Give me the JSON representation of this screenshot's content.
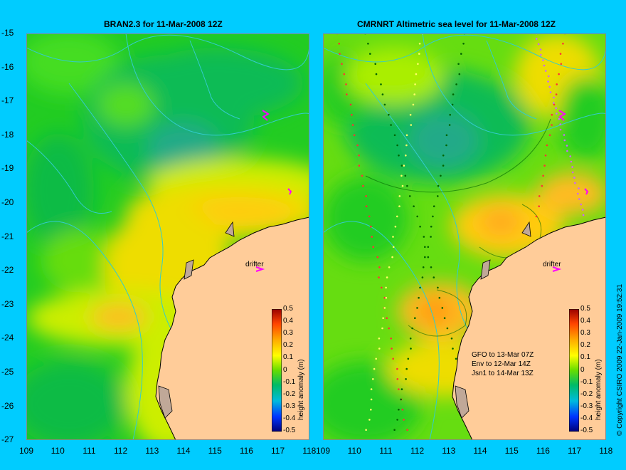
{
  "panels": {
    "left": {
      "title": "BRAN2.3 for 11-Mar-2008 12Z"
    },
    "right": {
      "title": "CMRNRT Altimetric sea level  for 11-Mar-2008 12Z"
    }
  },
  "axes": {
    "y_ticks": [
      "-15",
      "-16",
      "-17",
      "-18",
      "-19",
      "-20",
      "-21",
      "-22",
      "-23",
      "-24",
      "-25",
      "-26",
      "-27"
    ],
    "x_ticks": [
      "109",
      "110",
      "111",
      "112",
      "113",
      "114",
      "115",
      "116",
      "117",
      "118"
    ]
  },
  "colorbar": {
    "label": "height anomaly (m)",
    "ticks": [
      "0.5",
      "0.4",
      "0.3",
      "0.2",
      "0.1",
      "0",
      "-0.1",
      "-0.2",
      "-0.3",
      "-0.4",
      "-0.5"
    ]
  },
  "drifter_label": "drifter",
  "satellite_notes": [
    "GFO to 13-Mar 07Z",
    "Env to 12-Mar 14Z",
    "Jsn1 to 14-Mar 13Z"
  ],
  "copyright": "© Copyright CSIRO 2009   22-Jan-2009 19:52:31",
  "colors": {
    "background": "#00ccff",
    "land": "#ffcc99",
    "islands": "#c0a898",
    "contours": "#33cccc",
    "drifter_marker": "#ff00ff"
  }
}
